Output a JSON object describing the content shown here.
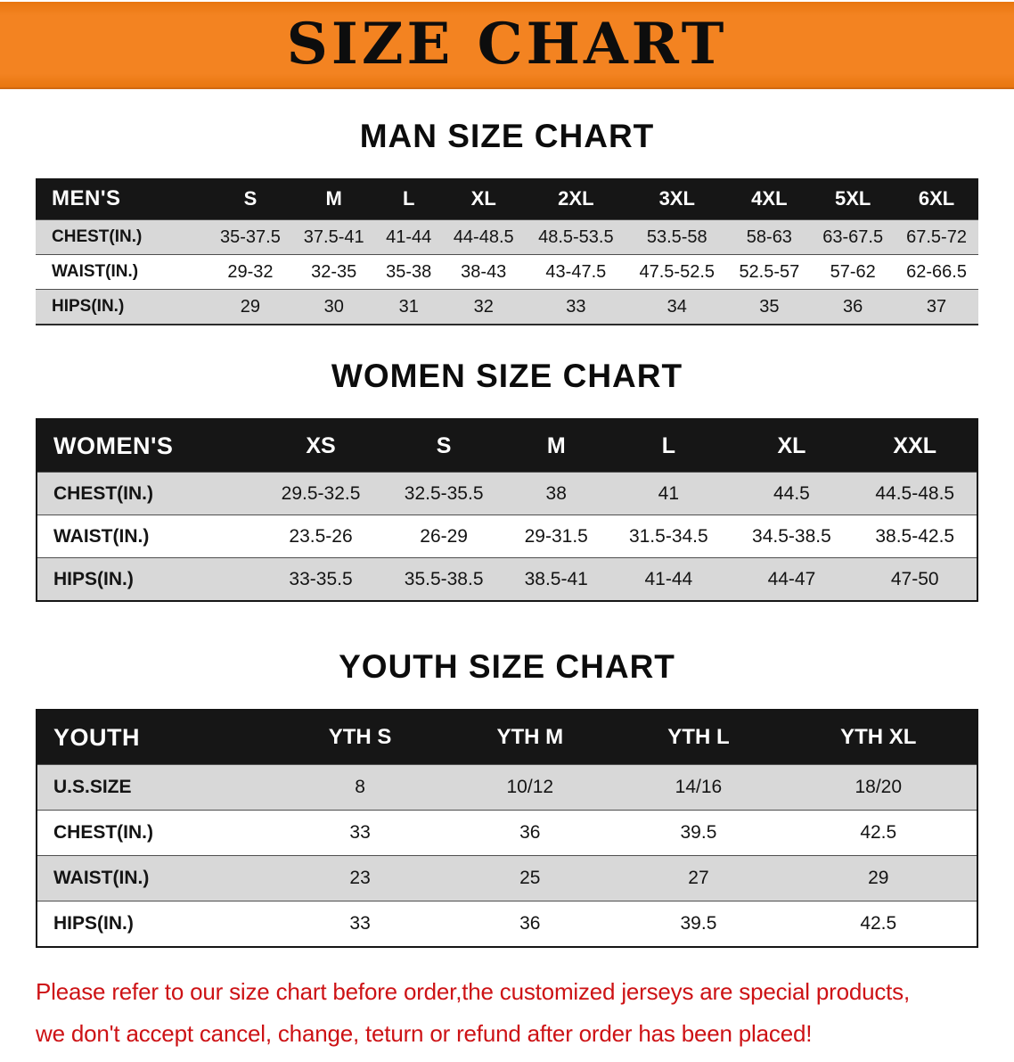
{
  "banner": {
    "title": "SIZE CHART"
  },
  "sections": [
    {
      "heading": "MAN SIZE CHART"
    },
    {
      "heading": "WOMEN SIZE CHART"
    },
    {
      "heading": "YOUTH SIZE CHART"
    }
  ],
  "chart_data": [
    {
      "type": "table",
      "title": "MAN SIZE CHART",
      "columns": [
        "MEN'S",
        "S",
        "M",
        "L",
        "XL",
        "2XL",
        "3XL",
        "4XL",
        "5XL",
        "6XL"
      ],
      "rows": [
        [
          "CHEST(IN.)",
          "35-37.5",
          "37.5-41",
          "41-44",
          "44-48.5",
          "48.5-53.5",
          "53.5-58",
          "58-63",
          "63-67.5",
          "67.5-72"
        ],
        [
          "WAIST(IN.)",
          "29-32",
          "32-35",
          "35-38",
          "38-43",
          "43-47.5",
          "47.5-52.5",
          "52.5-57",
          "57-62",
          "62-66.5"
        ],
        [
          "HIPS(IN.)",
          "29",
          "30",
          "31",
          "32",
          "33",
          "34",
          "35",
          "36",
          "37"
        ]
      ]
    },
    {
      "type": "table",
      "title": "WOMEN SIZE CHART",
      "columns": [
        "WOMEN'S",
        "XS",
        "S",
        "M",
        "L",
        "XL",
        "XXL"
      ],
      "rows": [
        [
          "CHEST(IN.)",
          "29.5-32.5",
          "32.5-35.5",
          "38",
          "41",
          "44.5",
          "44.5-48.5"
        ],
        [
          "WAIST(IN.)",
          "23.5-26",
          "26-29",
          "29-31.5",
          "31.5-34.5",
          "34.5-38.5",
          "38.5-42.5"
        ],
        [
          "HIPS(IN.)",
          "33-35.5",
          "35.5-38.5",
          "38.5-41",
          "41-44",
          "44-47",
          "47-50"
        ]
      ]
    },
    {
      "type": "table",
      "title": "YOUTH SIZE CHART",
      "columns": [
        "YOUTH",
        "YTH S",
        "YTH M",
        "YTH L",
        "YTH XL"
      ],
      "rows": [
        [
          "U.S.SIZE",
          "8",
          "10/12",
          "14/16",
          "18/20"
        ],
        [
          "CHEST(IN.)",
          "33",
          "36",
          "39.5",
          "42.5"
        ],
        [
          "WAIST(IN.)",
          "23",
          "25",
          "27",
          "29"
        ],
        [
          "HIPS(IN.)",
          "33",
          "36",
          "39.5",
          "42.5"
        ]
      ]
    }
  ],
  "notice": {
    "line1": "Please refer to our size chart before order,the customized jerseys are special products,",
    "line2": "we don't accept cancel, change, teturn or refund after order has been placed!"
  },
  "colors": {
    "banner_bg": "#f38321",
    "table_header_bg": "#161616",
    "row_alt_bg": "#d8d8d8",
    "notice_red": "#cd1215"
  }
}
